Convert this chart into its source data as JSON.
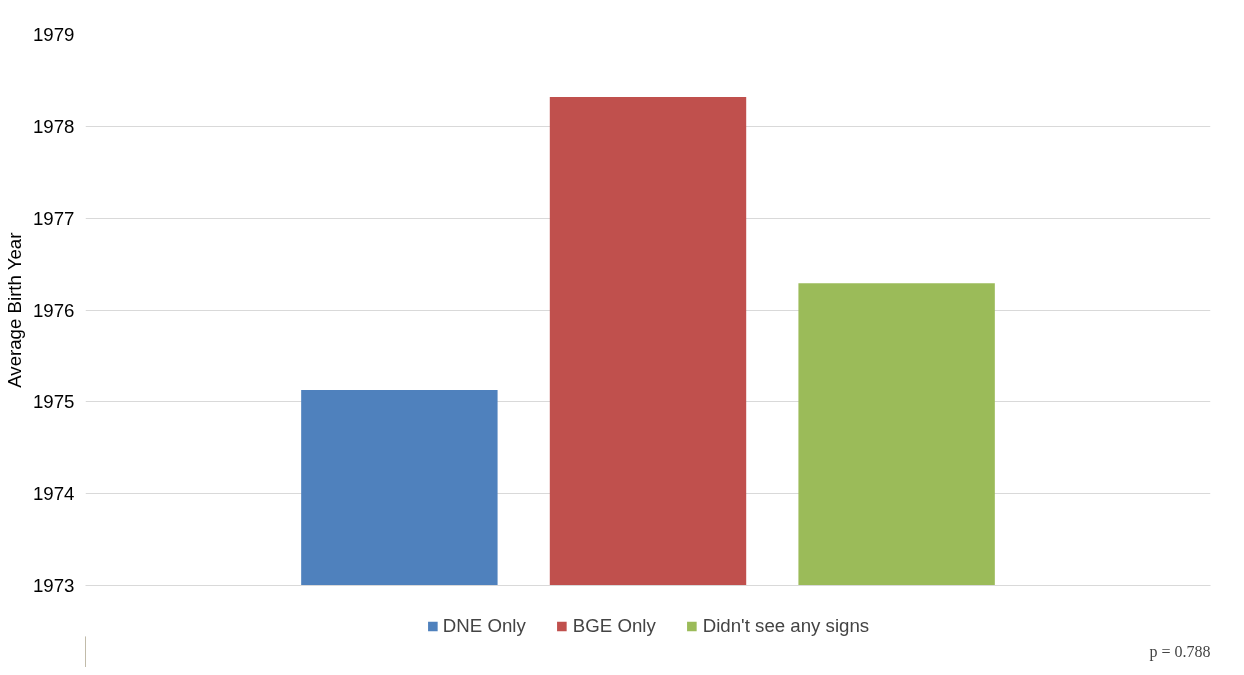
{
  "chart_data": {
    "type": "bar",
    "ylabel": "Average Birth Year",
    "categories": [
      null
    ],
    "series": [
      {
        "name": "DNE Only",
        "color": "#4f81bd",
        "values": [
          1975.13
        ]
      },
      {
        "name": "BGE Only",
        "color": "#c0504d",
        "values": [
          1978.32
        ]
      },
      {
        "name": "Didn't see any signs",
        "color": "#9bbb59",
        "values": [
          1976.29
        ]
      }
    ],
    "ylim": [
      1973,
      1979
    ],
    "yticks": [
      1973,
      1974,
      1975,
      1976,
      1977,
      1978,
      1979
    ],
    "grid": "y",
    "legend": "bottom",
    "annotations": [
      "p = 0.788"
    ]
  }
}
